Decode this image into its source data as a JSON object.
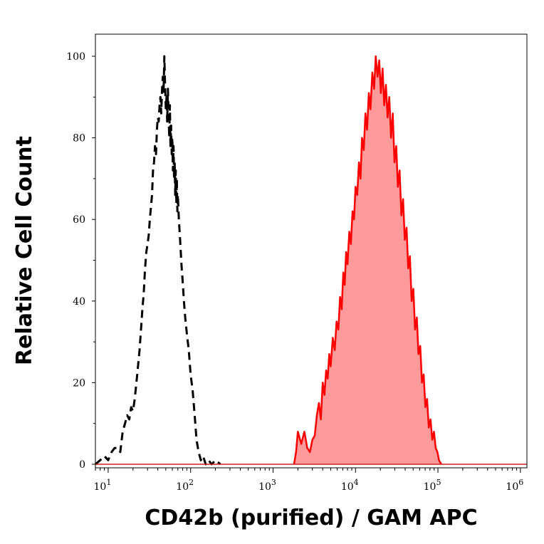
{
  "chart_data": {
    "type": "area",
    "title": "",
    "xlabel": "CD42b (purified) / GAM APC",
    "ylabel": "Relative Cell Count",
    "x_scale": "log",
    "xlim": [
      7,
      1200000
    ],
    "ylim": [
      0,
      100
    ],
    "grid": false,
    "legend": "none",
    "y_ticks": [
      0,
      20,
      40,
      60,
      80,
      100
    ],
    "y_tick_labels": [
      "0",
      "20",
      "40",
      "60",
      "80",
      "100"
    ],
    "x_ticks": [
      {
        "value": 10,
        "base": "10",
        "exp": "1"
      },
      {
        "value": 100,
        "base": "10",
        "exp": "2"
      },
      {
        "value": 1000,
        "base": "10",
        "exp": "3"
      },
      {
        "value": 10000,
        "base": "10",
        "exp": "4"
      },
      {
        "value": 100000,
        "base": "10",
        "exp": "5"
      },
      {
        "value": 1000000,
        "base": "10",
        "exp": "6"
      }
    ],
    "series": [
      {
        "style": "dashed",
        "color": "#000000",
        "fill": "none",
        "points": [
          [
            7,
            0
          ],
          [
            8,
            1
          ],
          [
            9,
            2
          ],
          [
            10,
            1
          ],
          [
            11,
            3
          ],
          [
            12,
            4
          ],
          [
            13,
            4
          ],
          [
            14,
            3
          ],
          [
            15,
            8
          ],
          [
            16,
            10
          ],
          [
            17,
            12
          ],
          [
            18,
            11
          ],
          [
            19,
            14
          ],
          [
            20,
            13
          ],
          [
            21,
            16
          ],
          [
            22,
            20
          ],
          [
            23,
            24
          ],
          [
            24,
            28
          ],
          [
            25,
            33
          ],
          [
            26,
            38
          ],
          [
            27,
            42
          ],
          [
            28,
            48
          ],
          [
            29,
            52
          ],
          [
            30,
            54
          ],
          [
            31,
            56
          ],
          [
            32,
            60
          ],
          [
            33,
            63
          ],
          [
            34,
            66
          ],
          [
            35,
            72
          ],
          [
            36,
            74
          ],
          [
            37,
            78
          ],
          [
            38,
            76
          ],
          [
            39,
            82
          ],
          [
            40,
            85
          ],
          [
            41,
            84
          ],
          [
            42,
            88
          ],
          [
            43,
            90
          ],
          [
            44,
            86
          ],
          [
            45,
            92
          ],
          [
            46,
            95
          ],
          [
            47,
            91
          ],
          [
            48,
            100
          ],
          [
            49,
            93
          ],
          [
            50,
            87
          ],
          [
            51,
            90
          ],
          [
            52,
            84
          ],
          [
            53,
            92
          ],
          [
            54,
            86
          ],
          [
            55,
            80
          ],
          [
            56,
            88
          ],
          [
            57,
            78
          ],
          [
            58,
            83
          ],
          [
            59,
            76
          ],
          [
            60,
            80
          ],
          [
            61,
            72
          ],
          [
            62,
            78
          ],
          [
            63,
            70
          ],
          [
            64,
            74
          ],
          [
            65,
            66
          ],
          [
            66,
            72
          ],
          [
            67,
            64
          ],
          [
            68,
            70
          ],
          [
            69,
            62
          ],
          [
            70,
            66
          ],
          [
            72,
            60
          ],
          [
            74,
            56
          ],
          [
            76,
            52
          ],
          [
            78,
            48
          ],
          [
            80,
            45
          ],
          [
            83,
            40
          ],
          [
            86,
            36
          ],
          [
            90,
            32
          ],
          [
            95,
            28
          ],
          [
            100,
            22
          ],
          [
            106,
            18
          ],
          [
            112,
            12
          ],
          [
            118,
            6
          ],
          [
            125,
            3
          ],
          [
            133,
            1
          ],
          [
            142,
            2
          ],
          [
            152,
            0
          ],
          [
            165,
            1
          ],
          [
            180,
            0
          ],
          [
            200,
            1
          ],
          [
            230,
            0
          ]
        ]
      },
      {
        "style": "solid",
        "color": "#ff0000",
        "fill": "#ff9a9a",
        "points": [
          [
            1800,
            0
          ],
          [
            1900,
            3
          ],
          [
            2000,
            8
          ],
          [
            2200,
            5
          ],
          [
            2400,
            8
          ],
          [
            2600,
            4
          ],
          [
            2800,
            3
          ],
          [
            3000,
            6
          ],
          [
            3200,
            7
          ],
          [
            3400,
            12
          ],
          [
            3600,
            15
          ],
          [
            3800,
            11
          ],
          [
            4000,
            20
          ],
          [
            4200,
            17
          ],
          [
            4400,
            23
          ],
          [
            4600,
            21
          ],
          [
            4800,
            27
          ],
          [
            5000,
            24
          ],
          [
            5300,
            31
          ],
          [
            5600,
            28
          ],
          [
            5900,
            35
          ],
          [
            6200,
            33
          ],
          [
            6500,
            41
          ],
          [
            6800,
            38
          ],
          [
            7100,
            47
          ],
          [
            7400,
            44
          ],
          [
            7700,
            52
          ],
          [
            8000,
            49
          ],
          [
            8400,
            57
          ],
          [
            8800,
            54
          ],
          [
            9200,
            62
          ],
          [
            9600,
            60
          ],
          [
            10000,
            68
          ],
          [
            10500,
            66
          ],
          [
            11000,
            74
          ],
          [
            11500,
            70
          ],
          [
            12000,
            80
          ],
          [
            12600,
            77
          ],
          [
            13200,
            86
          ],
          [
            13800,
            82
          ],
          [
            14500,
            91
          ],
          [
            15200,
            87
          ],
          [
            16000,
            96
          ],
          [
            16800,
            92
          ],
          [
            17600,
            100
          ],
          [
            18500,
            95
          ],
          [
            19400,
            99
          ],
          [
            20300,
            91
          ],
          [
            21300,
            97
          ],
          [
            22300,
            88
          ],
          [
            23400,
            93
          ],
          [
            24500,
            85
          ],
          [
            25700,
            90
          ],
          [
            27000,
            80
          ],
          [
            28300,
            86
          ],
          [
            29700,
            74
          ],
          [
            31200,
            78
          ],
          [
            32700,
            68
          ],
          [
            34300,
            72
          ],
          [
            36000,
            61
          ],
          [
            37800,
            65
          ],
          [
            39600,
            55
          ],
          [
            41600,
            58
          ],
          [
            43600,
            48
          ],
          [
            45700,
            51
          ],
          [
            48000,
            40
          ],
          [
            50300,
            43
          ],
          [
            52800,
            33
          ],
          [
            55400,
            36
          ],
          [
            58100,
            27
          ],
          [
            61000,
            29
          ],
          [
            64000,
            20
          ],
          [
            67100,
            22
          ],
          [
            70400,
            14
          ],
          [
            73900,
            16
          ],
          [
            77500,
            9
          ],
          [
            81300,
            11
          ],
          [
            85300,
            6
          ],
          [
            89500,
            8
          ],
          [
            94000,
            4
          ],
          [
            98500,
            3
          ],
          [
            103000,
            1
          ],
          [
            110000,
            0
          ]
        ]
      }
    ]
  }
}
